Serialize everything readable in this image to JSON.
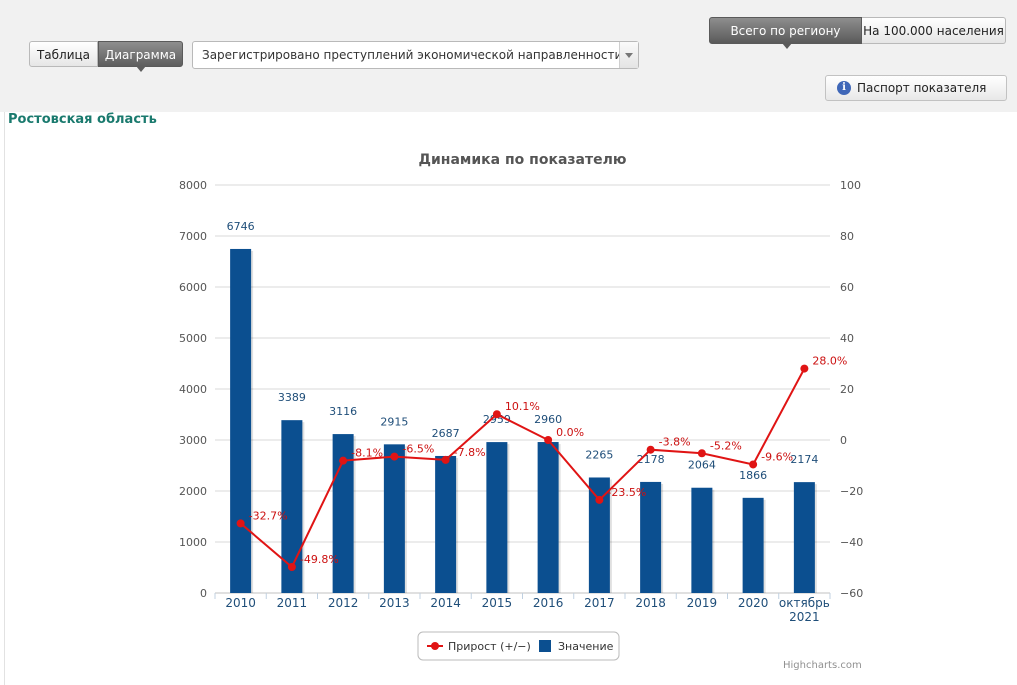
{
  "controls": {
    "tab_table": "Таблица",
    "tab_chart": "Диаграмма",
    "indicator_select": "Зарегистрировано преступлений экономической направленности",
    "region_total": "Всего по региону",
    "per_100k": "На 100.000 населения",
    "passport_button": "Паспорт показателя",
    "info_glyph": "i"
  },
  "region_name": "Ростовская область",
  "credit": "Highcharts.com",
  "colors": {
    "bar": "#0b4f90",
    "line": "#e01414",
    "region_text": "#1a7a6e",
    "bar_label": "#1f4e79",
    "line_label": "#cc1111"
  },
  "chart_data": {
    "type": "bar+line",
    "title": "Динамика по показателю",
    "categories": [
      "2010",
      "2011",
      "2012",
      "2013",
      "2014",
      "2015",
      "2016",
      "2017",
      "2018",
      "2019",
      "2020",
      "октябрь 2021"
    ],
    "series": [
      {
        "name": "Значение",
        "type": "bar",
        "axis": "left",
        "values": [
          6746,
          3389,
          3116,
          2915,
          2687,
          2959,
          2960,
          2265,
          2178,
          2064,
          1866,
          2174
        ],
        "labels": [
          "6746",
          "3389",
          "3116",
          "2915",
          "2687",
          "2959",
          "2960",
          "2265",
          "2178",
          "2064",
          "1866",
          "2174"
        ]
      },
      {
        "name": "Прирост (+/−)",
        "type": "line",
        "axis": "right",
        "values": [
          -32.7,
          -49.8,
          -8.1,
          -6.5,
          -7.8,
          10.1,
          0.0,
          -23.5,
          -3.8,
          -5.2,
          -9.6,
          28.0
        ],
        "labels": [
          "-32.7%",
          "-49.8%",
          "-8.1%",
          "-6.5%",
          "-7.8%",
          "10.1%",
          "0.0%",
          "-23.5%",
          "-3.8%",
          "-5.2%",
          "-9.6%",
          "28.0%"
        ]
      }
    ],
    "y_left": {
      "min": 0,
      "max": 8000,
      "ticks": [
        "0",
        "1000",
        "2000",
        "3000",
        "4000",
        "5000",
        "6000",
        "7000",
        "8000"
      ]
    },
    "y_right": {
      "min": -60,
      "max": 100,
      "ticks": [
        "−60",
        "−40",
        "−20",
        "0",
        "20",
        "40",
        "60",
        "80",
        "100"
      ]
    },
    "grid": true,
    "legend": {
      "position": "bottom-center",
      "items": [
        "Прирост (+/−)",
        "Значение"
      ]
    }
  }
}
